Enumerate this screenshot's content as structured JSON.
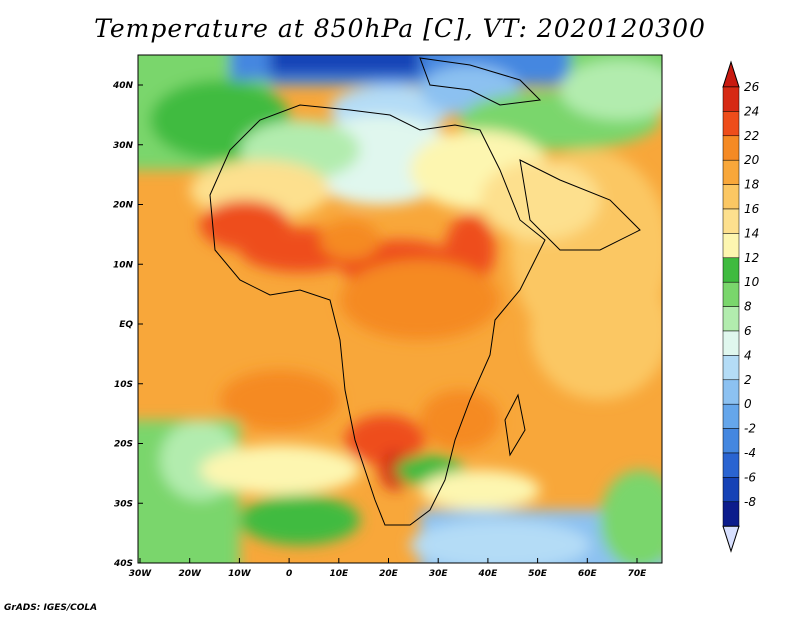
{
  "title": "Temperature at 850hPa [C], VT: 2020120300",
  "credit": "GrADS: IGES/COLA",
  "lon_ticks": [
    "30W",
    "20W",
    "10W",
    "0",
    "10E",
    "20E",
    "30E",
    "40E",
    "50E",
    "60E",
    "70E"
  ],
  "lat_ticks": [
    "40N",
    "30N",
    "20N",
    "10N",
    "EQ",
    "10S",
    "20S",
    "30S",
    "40S"
  ],
  "colorbar": {
    "labels": [
      "26",
      "24",
      "22",
      "20",
      "18",
      "16",
      "14",
      "12",
      "10",
      "8",
      "6",
      "4",
      "2",
      "0",
      "-2",
      "-4",
      "-6",
      "-8"
    ],
    "colors": [
      "#d62a14",
      "#ee4d1a",
      "#f58a24",
      "#f8a73a",
      "#fbc763",
      "#fde08e",
      "#fdf6b0",
      "#3fbb3f",
      "#7ad66c",
      "#b2ecae",
      "#e0f7ee",
      "#b4dcf6",
      "#8cc1f1",
      "#65a6eb",
      "#4487e0",
      "#2a64d1",
      "#1542b6",
      "#0c1c8c"
    ],
    "overflow_top": "#c81a10",
    "overflow_bottom": "#d8e0ff"
  }
}
